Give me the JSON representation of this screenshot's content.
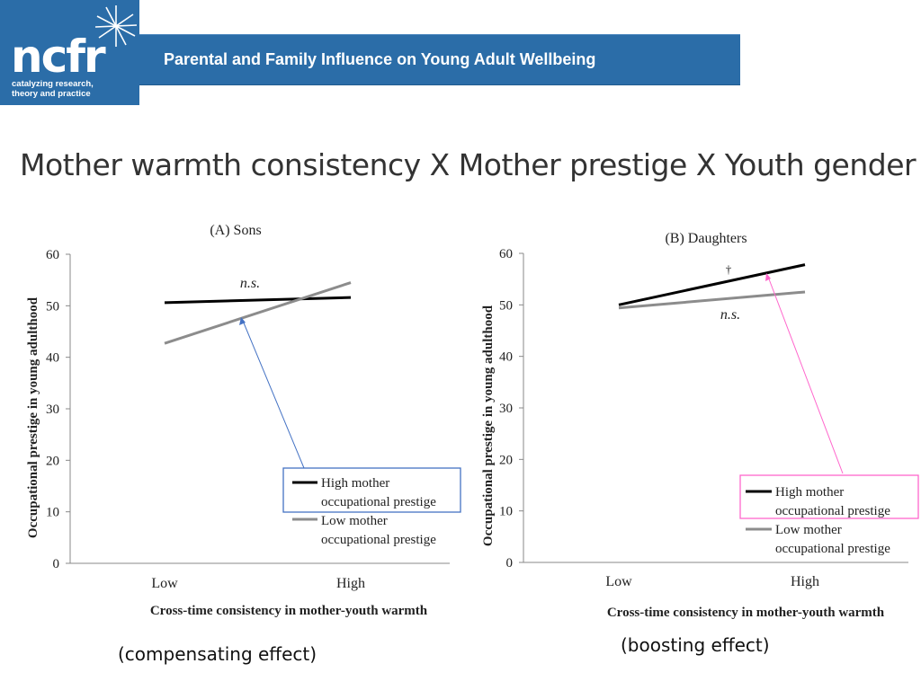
{
  "header": {
    "logo_text": "ncfr",
    "logo_tagline_line1": "catalyzing research,",
    "logo_tagline_line2": "theory and practice",
    "banner_title": "Parental and Family Influence on Young Adult Wellbeing"
  },
  "slide_title": "Mother warmth consistency X Mother prestige X Youth gender",
  "colors": {
    "banner": "#2b6da8",
    "high_series": "#000000",
    "low_series": "#8c8c8c",
    "sons_callout": "#4472c4",
    "daughters_callout": "#ff66cc"
  },
  "chart_data": [
    {
      "type": "line",
      "title": "(A) Sons",
      "xlabel": "Cross-time consistency in mother-youth warmth",
      "ylabel": "Occupational prestige in young adulthood",
      "categories": [
        "Low",
        "High"
      ],
      "ylim": [
        0,
        60
      ],
      "yticks": [
        0,
        10,
        20,
        30,
        40,
        50,
        60
      ],
      "series": [
        {
          "name": "High mother occupational prestige",
          "values": [
            50.6,
            51.6
          ],
          "color": "#000000"
        },
        {
          "name": "Low mother occupational prestige",
          "values": [
            42.7,
            54.5
          ],
          "color": "#8c8c8c"
        }
      ],
      "annotations": [
        {
          "text": "n.s."
        }
      ],
      "legend_placement": "bottom-right",
      "caption": "(compensating effect)"
    },
    {
      "type": "line",
      "title": "(B) Daughters",
      "xlabel": "Cross-time consistency in mother-youth warmth",
      "ylabel": "Occupational prestige in young adulthood",
      "categories": [
        "Low",
        "High"
      ],
      "ylim": [
        0,
        60
      ],
      "yticks": [
        0,
        10,
        20,
        30,
        40,
        50,
        60
      ],
      "series": [
        {
          "name": "High mother occupational prestige",
          "values": [
            50.0,
            57.8
          ],
          "color": "#000000"
        },
        {
          "name": "Low mother occupational prestige",
          "values": [
            49.4,
            52.5
          ],
          "color": "#8c8c8c"
        }
      ],
      "annotations": [
        {
          "text": "†"
        },
        {
          "text": "n.s."
        }
      ],
      "legend_placement": "bottom-right",
      "caption": "(boosting effect)"
    }
  ]
}
